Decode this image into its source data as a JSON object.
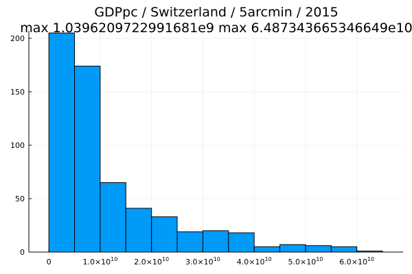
{
  "chart_data": {
    "type": "bar",
    "title_line1": "GDPpc / Switzerland / 5arcmin / 2015",
    "title_line2": "max 1.0396209722991681e9  max 6.487343665346649e10",
    "xlabel": "",
    "ylabel": "",
    "bin_edges": [
      0,
      5000000000,
      10000000000,
      15000000000,
      20000000000,
      25000000000,
      30000000000,
      35000000000,
      40000000000,
      45000000000,
      50000000000,
      55000000000,
      60000000000,
      65000000000
    ],
    "values": [
      205,
      174,
      65,
      41,
      33,
      19,
      20,
      18,
      5,
      7,
      6,
      5,
      1
    ],
    "xlim": [
      -3900000000,
      69000000000
    ],
    "ylim": [
      0,
      207
    ],
    "yticks": [
      0,
      50,
      100,
      150,
      200
    ],
    "ytick_labels": [
      "0",
      "50",
      "100",
      "150",
      "200"
    ],
    "xticks": [
      0,
      10000000000,
      20000000000,
      30000000000,
      40000000000,
      50000000000,
      60000000000
    ],
    "xtick_mantissa": [
      "0",
      "1.0×10",
      "2.0×10",
      "3.0×10",
      "4.0×10",
      "5.0×10",
      "6.0×10"
    ],
    "xtick_exponent": [
      "",
      "10",
      "10",
      "10",
      "10",
      "10",
      "10"
    ],
    "bar_color": "#009af9",
    "bar_edge_color": "#000000",
    "grid": true,
    "legend": "none"
  }
}
